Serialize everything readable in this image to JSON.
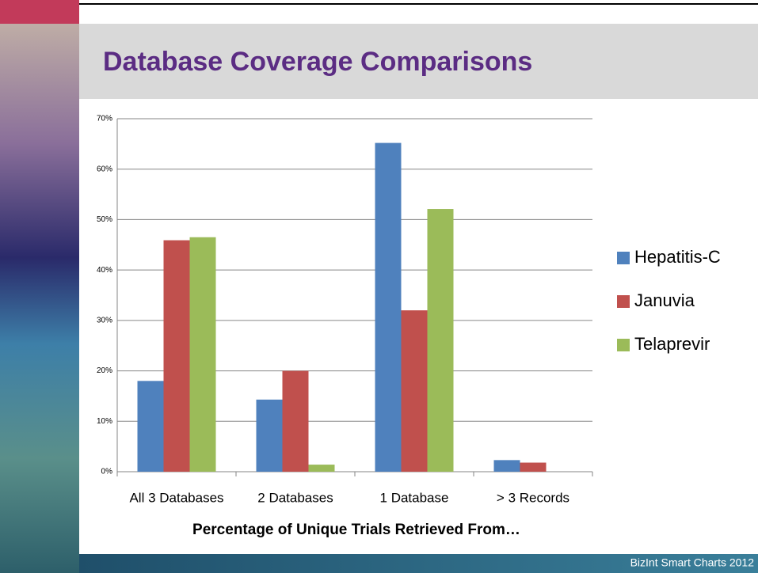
{
  "chart_data": {
    "type": "bar",
    "title": "Database Coverage Comparisons",
    "x_label": "Percentage of Unique Trials Retrieved From…",
    "footer": "BizInt Smart Charts 2012",
    "categories": [
      "All 3 Databases",
      "2 Databases",
      "1 Database",
      "> 3 Records"
    ],
    "series": [
      {
        "name": "Hepatitis-C",
        "color": "#4f81bd",
        "values": [
          18,
          14.3,
          65.2,
          2.3
        ]
      },
      {
        "name": "Januvia",
        "color": "#c0504d",
        "values": [
          45.9,
          20,
          32,
          1.8
        ]
      },
      {
        "name": "Telaprevir",
        "color": "#9bbb59",
        "values": [
          46.5,
          1.4,
          52.1,
          null
        ]
      }
    ],
    "ylim": [
      0,
      70
    ],
    "yticks": [
      {
        "value": 0,
        "label": "0%"
      },
      {
        "value": 10,
        "label": "10%"
      },
      {
        "value": 20,
        "label": "20%"
      },
      {
        "value": 30,
        "label": "30%"
      },
      {
        "value": 40,
        "label": "40%"
      },
      {
        "value": 50,
        "label": "50%"
      },
      {
        "value": 60,
        "label": "60%"
      },
      {
        "value": 70,
        "label": "70%"
      }
    ],
    "grid": true,
    "legend": "right"
  }
}
